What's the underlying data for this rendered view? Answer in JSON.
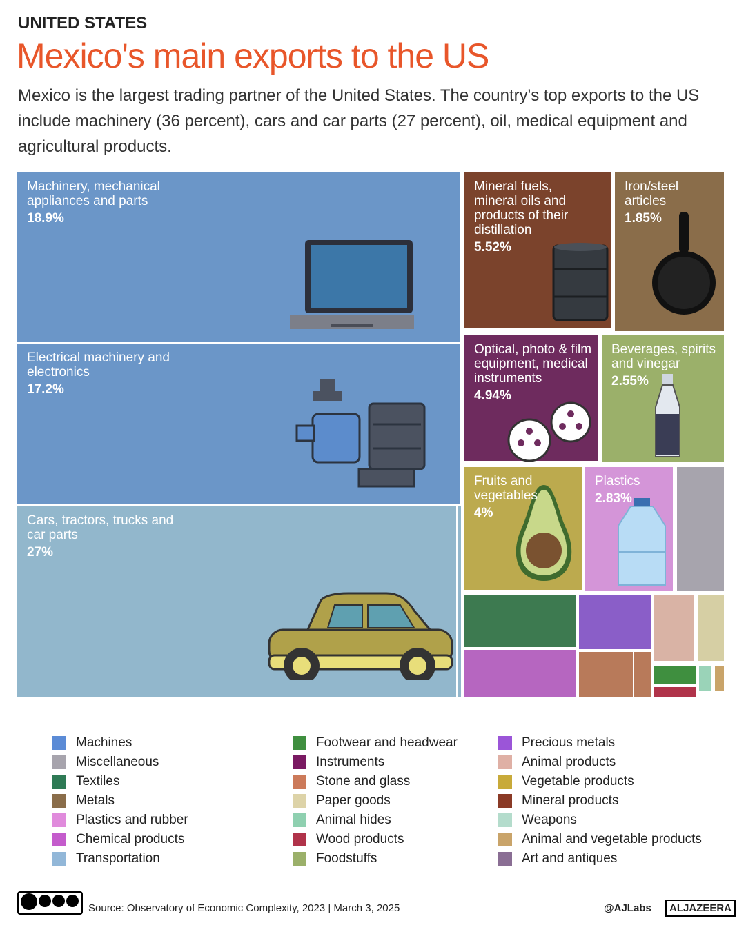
{
  "header": {
    "kicker": "UNITED STATES",
    "title": "Mexico's main exports to the US",
    "subtitle": "Mexico is the largest trading partner of the United States. The country's top exports to the US include machinery (36 percent), cars and car parts (27 percent), oil, medical equipment and agricultural products."
  },
  "chart_data": {
    "type": "treemap",
    "categories": [
      "Machinery, mechanical appliances and parts",
      "Electrical machinery and electronics",
      "Cars, tractors, trucks and car parts",
      "Mineral fuels, mineral oils and products of their distillation",
      "Iron/steel articles",
      "Optical, photo & film equipment, medical instruments",
      "Beverages, spirits and vinegar",
      "Fruits and vegetables",
      "Plastics"
    ],
    "values": [
      18.9,
      17.2,
      27,
      5.52,
      1.85,
      4.94,
      2.55,
      4,
      2.83
    ],
    "value_labels": [
      "18.9%",
      "17.2%",
      "27%",
      "5.52%",
      "1.85%",
      "4.94%",
      "2.55%",
      "4%",
      "2.83%"
    ],
    "colors": [
      "#6b96c8",
      "#6b96c8",
      "#92b7cc",
      "#7b432c",
      "#8a6d4a",
      "#6e2b5e",
      "#9bb06a",
      "#bcaa4e",
      "#d495d8"
    ],
    "legend": [
      {
        "name": "Machines",
        "color": "#5b8bd6"
      },
      {
        "name": "Miscellaneous",
        "color": "#a7a4ad"
      },
      {
        "name": "Textiles",
        "color": "#2e7a55"
      },
      {
        "name": "Metals",
        "color": "#8a6d4a"
      },
      {
        "name": "Plastics and rubber",
        "color": "#e08bdc"
      },
      {
        "name": "Chemical products",
        "color": "#c45ccc"
      },
      {
        "name": "Transportation",
        "color": "#92b7d8"
      },
      {
        "name": "Footwear and headwear",
        "color": "#3f8f3f"
      },
      {
        "name": "Instruments",
        "color": "#7a1a62"
      },
      {
        "name": "Stone and glass",
        "color": "#cc7a5a"
      },
      {
        "name": "Paper goods",
        "color": "#ddd3a8"
      },
      {
        "name": "Animal hides",
        "color": "#8fd0b0"
      },
      {
        "name": "Wood products",
        "color": "#b0334a"
      },
      {
        "name": "Foodstuffs",
        "color": "#9bb06a"
      },
      {
        "name": "Precious metals",
        "color": "#9b55d8"
      },
      {
        "name": "Animal products",
        "color": "#dfb0a5"
      },
      {
        "name": "Vegetable products",
        "color": "#c8aa3a"
      },
      {
        "name": "Mineral products",
        "color": "#8a3a26"
      },
      {
        "name": "Weapons",
        "color": "#b4dccc"
      },
      {
        "name": "Animal and vegetable products",
        "color": "#c9a46a"
      },
      {
        "name": "Art and antiques",
        "color": "#8a6e94"
      }
    ]
  },
  "footer": {
    "source": "Source:  Observatory of Economic Complexity, 2023 | March 3, 2025",
    "handle": "@AJLabs",
    "brand": "ALJAZEERA"
  }
}
